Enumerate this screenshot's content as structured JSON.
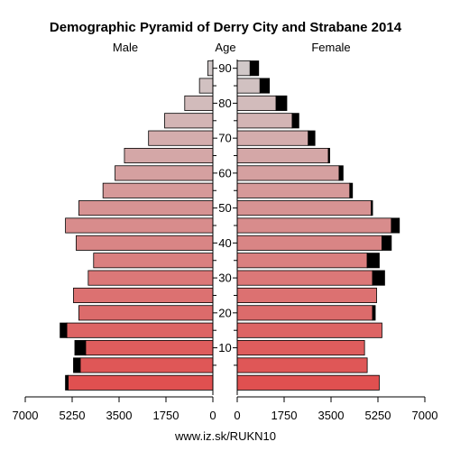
{
  "chart_data": {
    "type": "bar",
    "subtype": "population-pyramid",
    "title": "Demographic Pyramid of Derry City and Strabane 2014",
    "left_label": "Male",
    "center_label": "Age",
    "right_label": "Female",
    "footer": "www.iz.sk/RUKN10",
    "xlim": [
      0,
      7000
    ],
    "x_ticks_left": [
      "7000",
      "5250",
      "3500",
      "1750",
      "0"
    ],
    "x_ticks_right": [
      "0",
      "1750",
      "3500",
      "5250",
      "7000"
    ],
    "x_tick_values": [
      0,
      1750,
      3500,
      5250,
      7000
    ],
    "age_ticks": [
      10,
      20,
      30,
      40,
      50,
      60,
      70,
      80,
      90
    ],
    "age_groups": [
      "0-4",
      "5-9",
      "10-14",
      "15-19",
      "20-24",
      "25-29",
      "30-34",
      "35-39",
      "40-44",
      "45-49",
      "50-54",
      "55-59",
      "60-64",
      "65-69",
      "70-74",
      "75-79",
      "80-84",
      "85-89",
      "90+"
    ],
    "series": [
      {
        "name": "Male",
        "values": [
          5400,
          4950,
          4750,
          5450,
          5000,
          5200,
          4650,
          4450,
          5100,
          5500,
          5000,
          4100,
          3650,
          3300,
          2400,
          1800,
          1050,
          500,
          190
        ],
        "excess": [
          100,
          250,
          400,
          250,
          0,
          0,
          0,
          0,
          0,
          0,
          0,
          0,
          0,
          0,
          0,
          0,
          0,
          0,
          0
        ]
      },
      {
        "name": "Female",
        "values": [
          5300,
          4850,
          4750,
          5400,
          5050,
          5200,
          5050,
          4850,
          5400,
          5750,
          5000,
          4200,
          3800,
          3400,
          2650,
          2050,
          1450,
          850,
          480
        ],
        "excess": [
          0,
          0,
          0,
          0,
          100,
          0,
          450,
          450,
          350,
          300,
          50,
          100,
          150,
          50,
          250,
          250,
          400,
          350,
          320
        ]
      }
    ],
    "colors": {
      "bar_top": "#d0c8c8",
      "bar_bottom": "#e05050",
      "excess": "#000000",
      "axis": "#000000"
    }
  }
}
